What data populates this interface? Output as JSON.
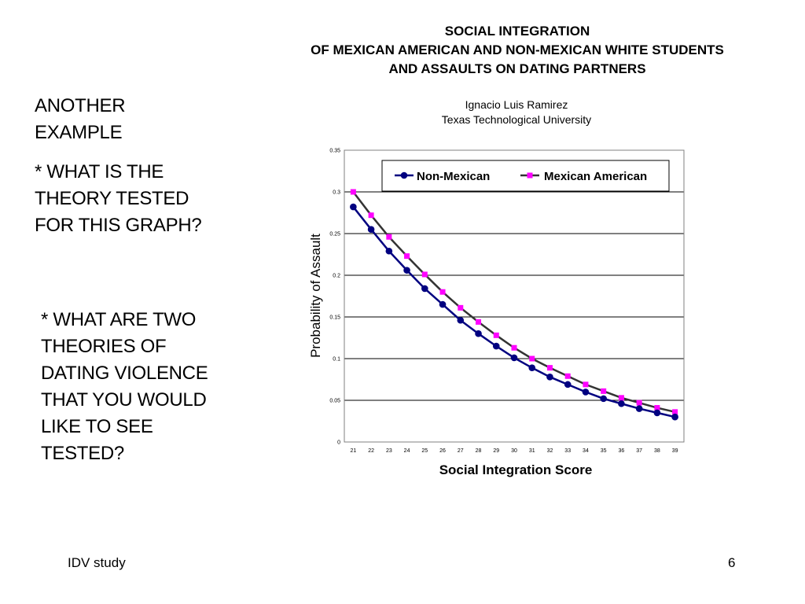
{
  "slide": {
    "left_heading": "ANOTHER EXAMPLE",
    "question1": "* WHAT IS THE THEORY TESTED  FOR THIS GRAPH?",
    "question2": "* WHAT ARE TWO  THEORIES OF DATING VIOLENCE THAT YOU WOULD LIKE TO SEE TESTED?",
    "footer_left": "IDV study",
    "footer_right": "6"
  },
  "chart_data": {
    "type": "line",
    "title_lines": [
      "SOCIAL INTEGRATION",
      "OF MEXICAN AMERICAN AND NON-MEXICAN WHITE STUDENTS",
      "AND ASSAULTS ON DATING PARTNERS"
    ],
    "subtitle_lines": [
      "Ignacio Luis Ramirez",
      "Texas Technological University"
    ],
    "xlabel": "Social Integration Score",
    "ylabel": "Probability of Assault",
    "categories": [
      "21",
      "22",
      "23",
      "24",
      "25",
      "26",
      "27",
      "28",
      "29",
      "30",
      "31",
      "32",
      "33",
      "34",
      "35",
      "36",
      "37",
      "38",
      "39"
    ],
    "ylim": [
      0,
      0.35
    ],
    "yticks": [
      0,
      0.05,
      0.1,
      0.15,
      0.2,
      0.25,
      0.3,
      0.35
    ],
    "ytick_labels": [
      "0",
      "0.05",
      "0.1",
      "0.15",
      "0.2",
      "0.25",
      "0.3",
      "0.35"
    ],
    "grid": "horizontal",
    "legend_position": "top",
    "series": [
      {
        "name": "Non-Mexican",
        "color": "#000080",
        "marker": "circle",
        "values": [
          0.282,
          0.255,
          0.229,
          0.206,
          0.184,
          0.165,
          0.146,
          0.13,
          0.115,
          0.101,
          0.089,
          0.078,
          0.069,
          0.06,
          0.052,
          0.046,
          0.04,
          0.035,
          0.03
        ]
      },
      {
        "name": "Mexican American",
        "color": "#ff00ff",
        "line_color": "#333333",
        "marker": "square",
        "values": [
          0.3,
          0.272,
          0.246,
          0.223,
          0.201,
          0.18,
          0.161,
          0.144,
          0.128,
          0.113,
          0.1,
          0.089,
          0.079,
          0.069,
          0.061,
          0.053,
          0.047,
          0.041,
          0.036
        ]
      }
    ]
  }
}
